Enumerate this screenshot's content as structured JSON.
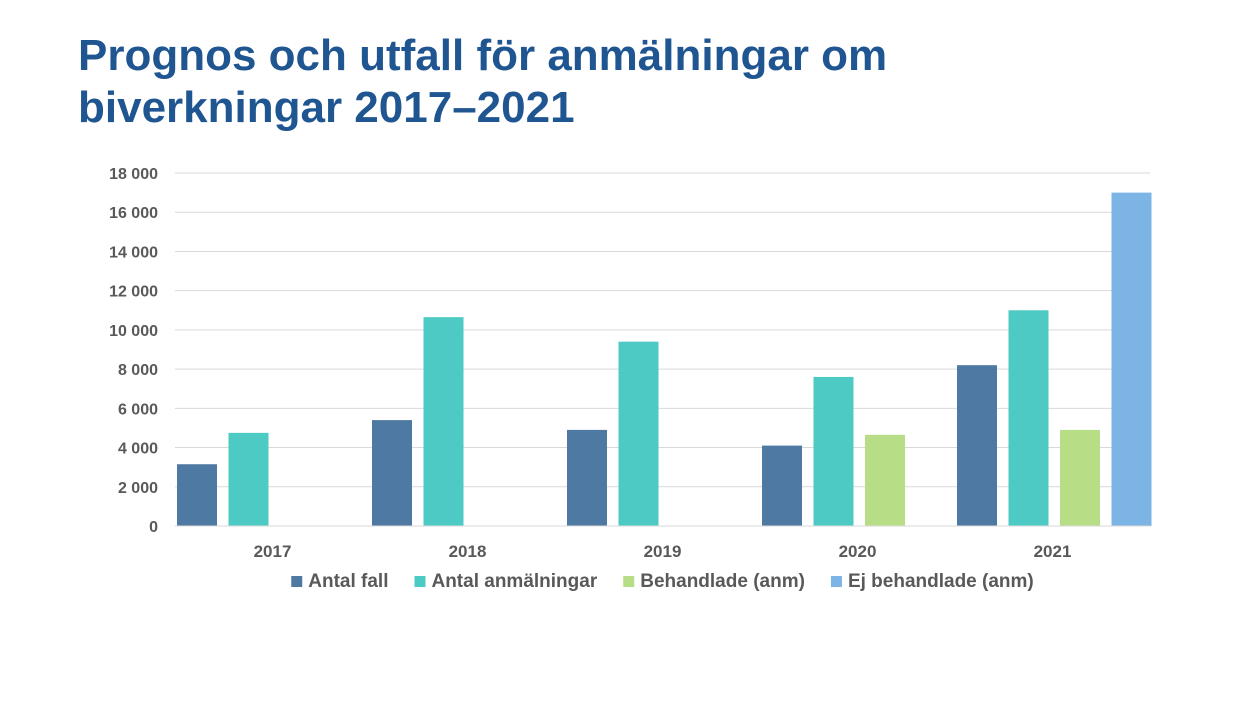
{
  "slide": {
    "title_line1": "Prognos och utfall för anmälningar om",
    "title_line2": "biverkningar 2017–2021"
  },
  "chart_data": {
    "type": "bar",
    "title": "",
    "xlabel": "",
    "ylabel": "",
    "categories": [
      "2017",
      "2018",
      "2019",
      "2020",
      "2021"
    ],
    "ylim": [
      0,
      18000
    ],
    "yticks": [
      0,
      2000,
      4000,
      6000,
      8000,
      10000,
      12000,
      14000,
      16000,
      18000
    ],
    "ytick_labels": [
      "0",
      "2 000",
      "4 000",
      "6 000",
      "8 000",
      "10 000",
      "12 000",
      "14 000",
      "16 000",
      "18 000"
    ],
    "grid": true,
    "legend_position": "bottom",
    "series": [
      {
        "name": "Antal fall",
        "color": "#4e79a2",
        "values": [
          3150,
          5400,
          4900,
          4100,
          8200
        ]
      },
      {
        "name": "Antal anmälningar",
        "color": "#4ecac4",
        "values": [
          4750,
          10650,
          9400,
          7600,
          11000
        ]
      },
      {
        "name": "Behandlade (anm)",
        "color": "#b7de86",
        "values": [
          null,
          null,
          null,
          4650,
          4900
        ]
      },
      {
        "name": "Ej behandlade (anm)",
        "color": "#7cb4e6",
        "values": [
          null,
          null,
          null,
          null,
          17000
        ]
      }
    ]
  }
}
